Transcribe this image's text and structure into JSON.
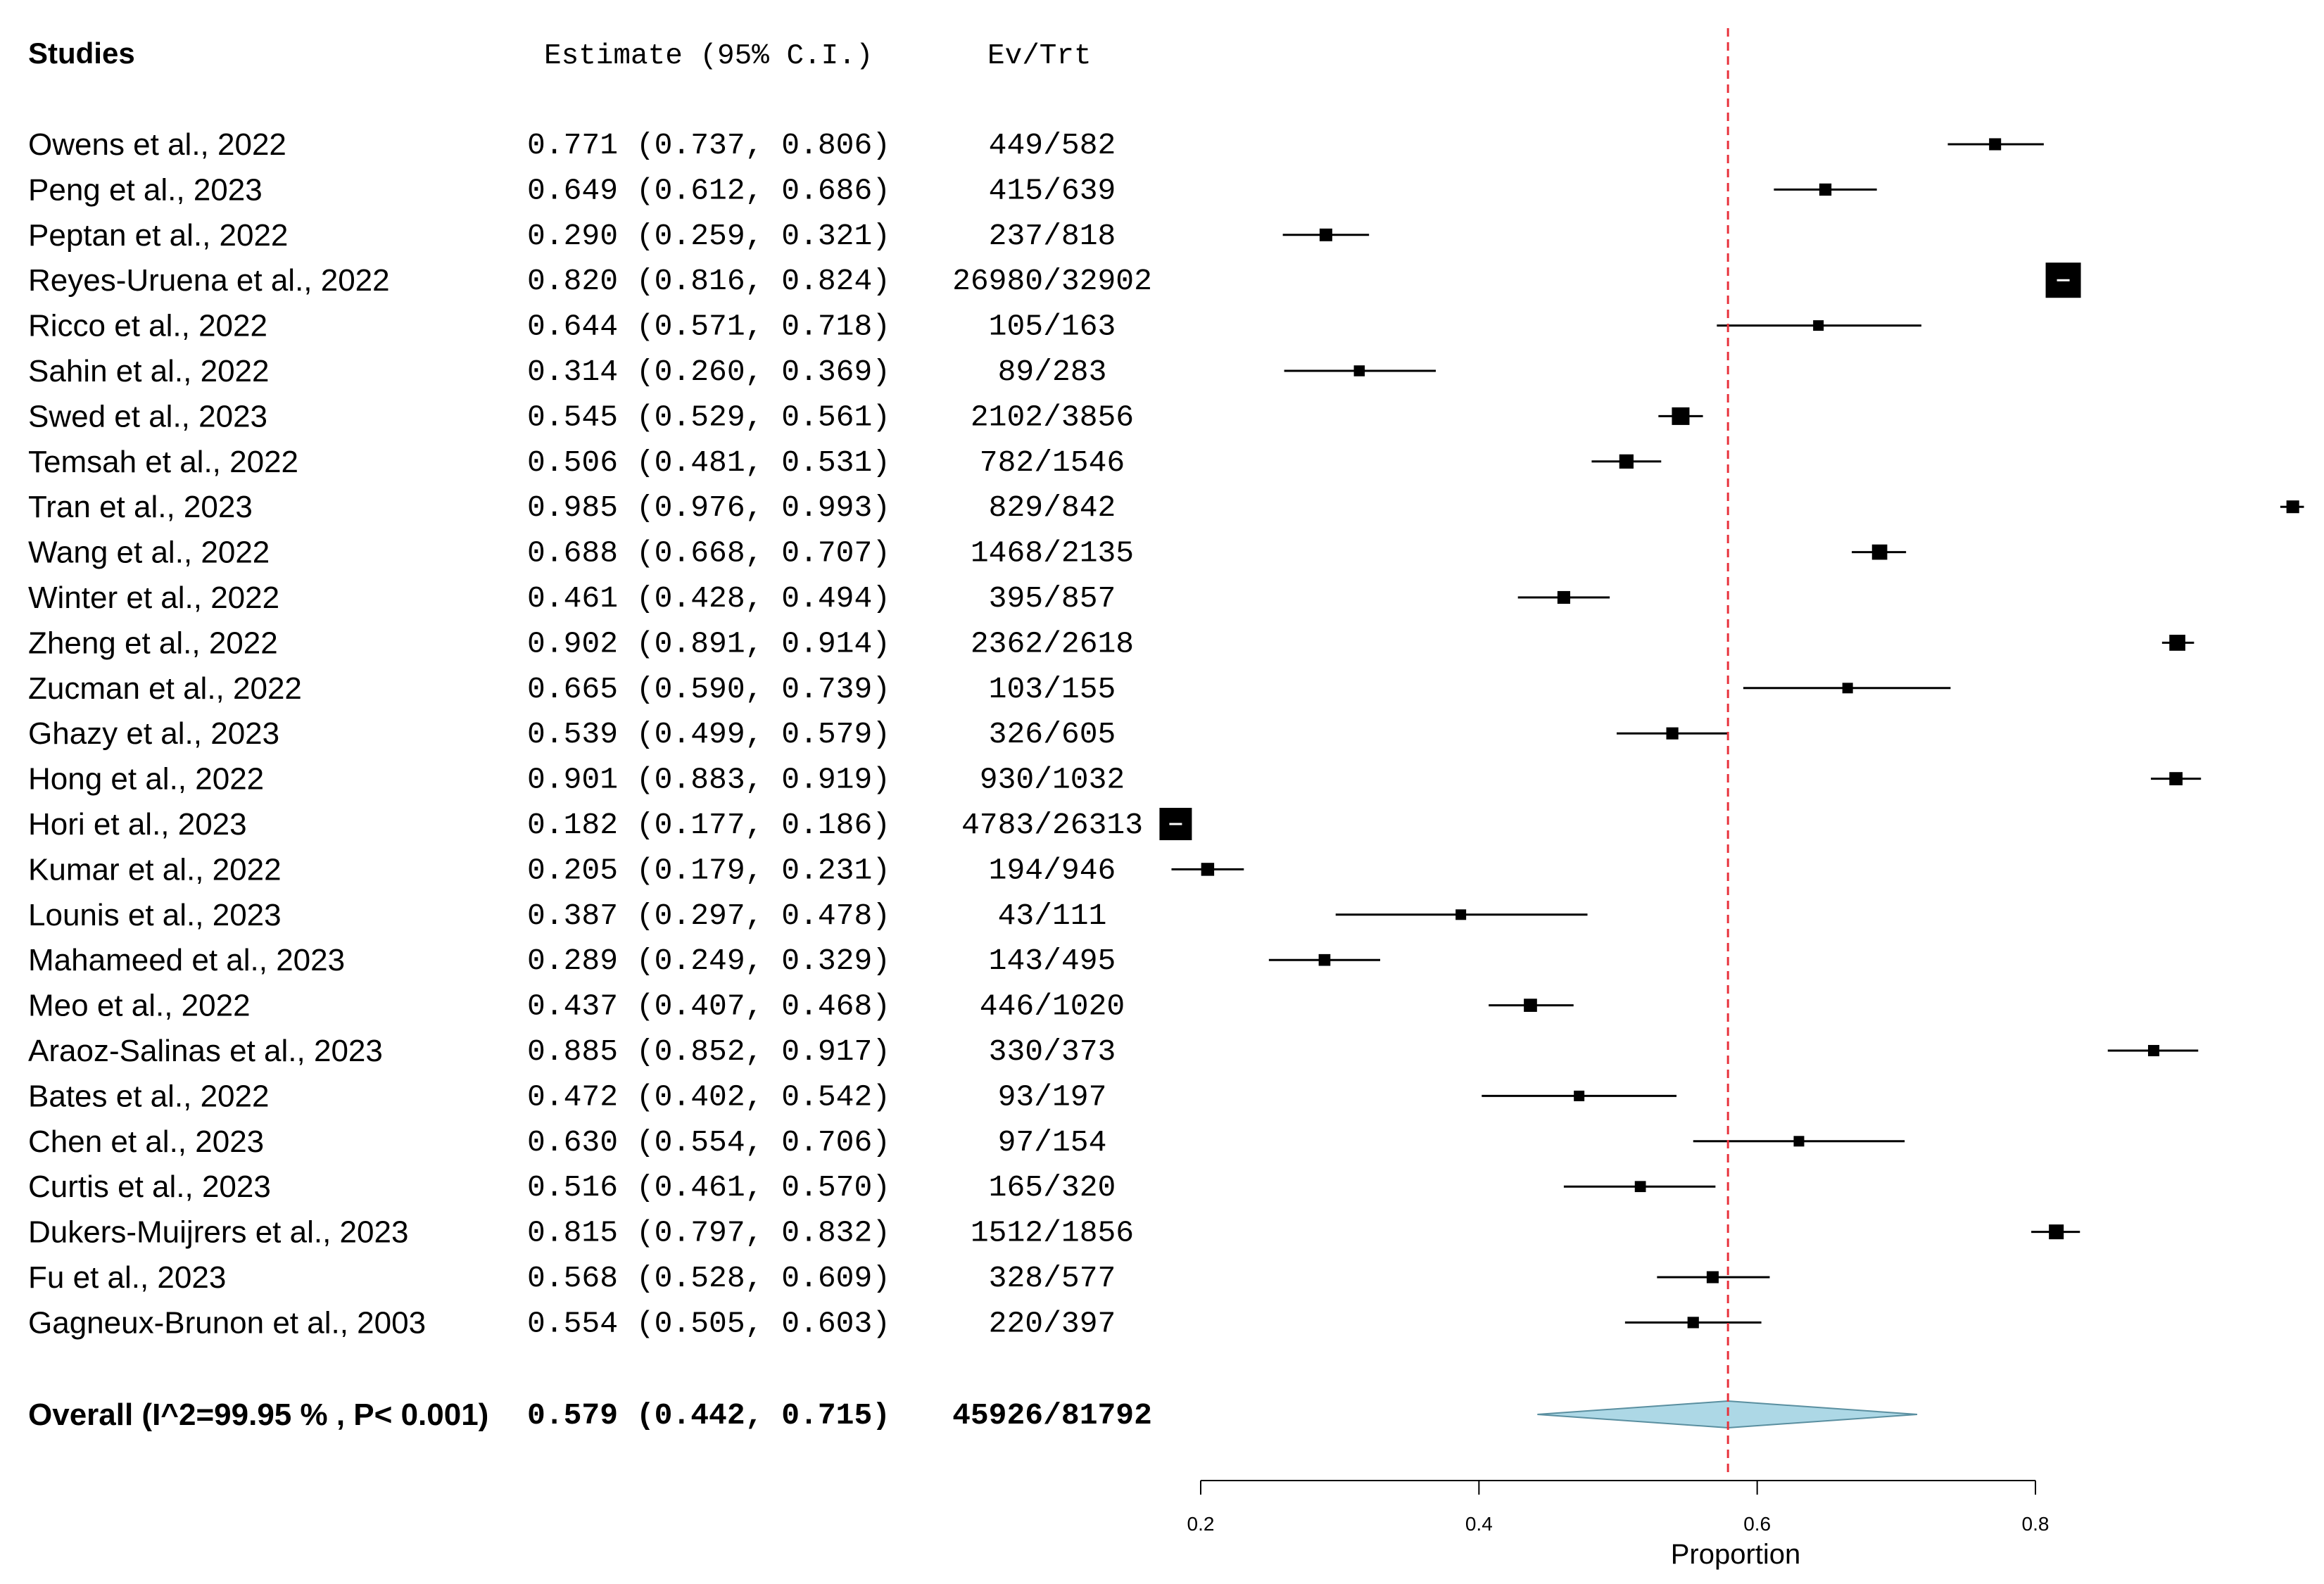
{
  "chart_data": {
    "type": "forest",
    "title": "",
    "headers": {
      "studies": "Studies",
      "estimate": "Estimate (95% C.I.)",
      "events": "Ev/Trt"
    },
    "xlabel": "Proportion",
    "xlim": [
      0.2,
      0.8
    ],
    "ticks": [
      0.2,
      0.4,
      0.6,
      0.8
    ],
    "tick_labels": [
      "0.2",
      "0.4",
      "0.6",
      "0.8"
    ],
    "reference_line": 0.579,
    "reference_color": "#e8323c",
    "diamond_color": "#add8e6",
    "studies": [
      {
        "label": "Owens et al., 2022",
        "est": 0.771,
        "lo": 0.737,
        "hi": 0.806,
        "est_text": "0.771",
        "lo_text": "0.737",
        "hi_text": "0.806",
        "ev": "449",
        "trt": "582"
      },
      {
        "label": "Peng et al., 2023",
        "est": 0.649,
        "lo": 0.612,
        "hi": 0.686,
        "est_text": "0.649",
        "lo_text": "0.612",
        "hi_text": "0.686",
        "ev": "415",
        "trt": "639"
      },
      {
        "label": "Peptan et al., 2022",
        "est": 0.29,
        "lo": 0.259,
        "hi": 0.321,
        "est_text": "0.290",
        "lo_text": "0.259",
        "hi_text": "0.321",
        "ev": "237",
        "trt": "818"
      },
      {
        "label": "Reyes-Uruena et al., 2022",
        "est": 0.82,
        "lo": 0.816,
        "hi": 0.824,
        "est_text": "0.820",
        "lo_text": "0.816",
        "hi_text": "0.824",
        "ev": "26980",
        "trt": "32902"
      },
      {
        "label": "Ricco et al., 2022",
        "est": 0.644,
        "lo": 0.571,
        "hi": 0.718,
        "est_text": "0.644",
        "lo_text": "0.571",
        "hi_text": "0.718",
        "ev": "105",
        "trt": "163"
      },
      {
        "label": "Sahin et al., 2022",
        "est": 0.314,
        "lo": 0.26,
        "hi": 0.369,
        "est_text": "0.314",
        "lo_text": "0.260",
        "hi_text": "0.369",
        "ev": "89",
        "trt": "283"
      },
      {
        "label": "Swed et al., 2023",
        "est": 0.545,
        "lo": 0.529,
        "hi": 0.561,
        "est_text": "0.545",
        "lo_text": "0.529",
        "hi_text": "0.561",
        "ev": "2102",
        "trt": "3856"
      },
      {
        "label": "Temsah et al., 2022",
        "est": 0.506,
        "lo": 0.481,
        "hi": 0.531,
        "est_text": "0.506",
        "lo_text": "0.481",
        "hi_text": "0.531",
        "ev": "782",
        "trt": "1546"
      },
      {
        "label": "Tran et al., 2023",
        "est": 0.985,
        "lo": 0.976,
        "hi": 0.993,
        "est_text": "0.985",
        "lo_text": "0.976",
        "hi_text": "0.993",
        "ev": "829",
        "trt": "842"
      },
      {
        "label": "Wang et al., 2022",
        "est": 0.688,
        "lo": 0.668,
        "hi": 0.707,
        "est_text": "0.688",
        "lo_text": "0.668",
        "hi_text": "0.707",
        "ev": "1468",
        "trt": "2135"
      },
      {
        "label": "Winter et al., 2022",
        "est": 0.461,
        "lo": 0.428,
        "hi": 0.494,
        "est_text": "0.461",
        "lo_text": "0.428",
        "hi_text": "0.494",
        "ev": "395",
        "trt": "857"
      },
      {
        "label": "Zheng et al., 2022",
        "est": 0.902,
        "lo": 0.891,
        "hi": 0.914,
        "est_text": "0.902",
        "lo_text": "0.891",
        "hi_text": "0.914",
        "ev": "2362",
        "trt": "2618"
      },
      {
        "label": "Zucman et al., 2022",
        "est": 0.665,
        "lo": 0.59,
        "hi": 0.739,
        "est_text": "0.665",
        "lo_text": "0.590",
        "hi_text": "0.739",
        "ev": "103",
        "trt": "155"
      },
      {
        "label": "Ghazy et al., 2023",
        "est": 0.539,
        "lo": 0.499,
        "hi": 0.579,
        "est_text": "0.539",
        "lo_text": "0.499",
        "hi_text": "0.579",
        "ev": "326",
        "trt": "605"
      },
      {
        "label": "Hong et al., 2022",
        "est": 0.901,
        "lo": 0.883,
        "hi": 0.919,
        "est_text": "0.901",
        "lo_text": "0.883",
        "hi_text": "0.919",
        "ev": "930",
        "trt": "1032"
      },
      {
        "label": "Hori et al., 2023",
        "est": 0.182,
        "lo": 0.177,
        "hi": 0.186,
        "est_text": "0.182",
        "lo_text": "0.177",
        "hi_text": "0.186",
        "ev": "4783",
        "trt": "26313"
      },
      {
        "label": "Kumar et al., 2022",
        "est": 0.205,
        "lo": 0.179,
        "hi": 0.231,
        "est_text": "0.205",
        "lo_text": "0.179",
        "hi_text": "0.231",
        "ev": "194",
        "trt": "946"
      },
      {
        "label": "Lounis et al., 2023",
        "est": 0.387,
        "lo": 0.297,
        "hi": 0.478,
        "est_text": "0.387",
        "lo_text": "0.297",
        "hi_text": "0.478",
        "ev": "43",
        "trt": "111"
      },
      {
        "label": "Mahameed et al., 2023",
        "est": 0.289,
        "lo": 0.249,
        "hi": 0.329,
        "est_text": "0.289",
        "lo_text": "0.249",
        "hi_text": "0.329",
        "ev": "143",
        "trt": "495"
      },
      {
        "label": "Meo et al., 2022",
        "est": 0.437,
        "lo": 0.407,
        "hi": 0.468,
        "est_text": "0.437",
        "lo_text": "0.407",
        "hi_text": "0.468",
        "ev": "446",
        "trt": "1020"
      },
      {
        "label": "Araoz-Salinas et al., 2023",
        "est": 0.885,
        "lo": 0.852,
        "hi": 0.917,
        "est_text": "0.885",
        "lo_text": "0.852",
        "hi_text": "0.917",
        "ev": "330",
        "trt": "373"
      },
      {
        "label": "Bates et al., 2022",
        "est": 0.472,
        "lo": 0.402,
        "hi": 0.542,
        "est_text": "0.472",
        "lo_text": "0.402",
        "hi_text": "0.542",
        "ev": "93",
        "trt": "197"
      },
      {
        "label": "Chen et al., 2023",
        "est": 0.63,
        "lo": 0.554,
        "hi": 0.706,
        "est_text": "0.630",
        "lo_text": "0.554",
        "hi_text": "0.706",
        "ev": "97",
        "trt": "154"
      },
      {
        "label": "Curtis et al., 2023",
        "est": 0.516,
        "lo": 0.461,
        "hi": 0.57,
        "est_text": "0.516",
        "lo_text": "0.461",
        "hi_text": "0.570",
        "ev": "165",
        "trt": "320"
      },
      {
        "label": "Dukers-Muijrers et al., 2023",
        "est": 0.815,
        "lo": 0.797,
        "hi": 0.832,
        "est_text": "0.815",
        "lo_text": "0.797",
        "hi_text": "0.832",
        "ev": "1512",
        "trt": "1856"
      },
      {
        "label": "Fu et al., 2023",
        "est": 0.568,
        "lo": 0.528,
        "hi": 0.609,
        "est_text": "0.568",
        "lo_text": "0.528",
        "hi_text": "0.609",
        "ev": "328",
        "trt": "577"
      },
      {
        "label": "Gagneux-Brunon et al., 2003",
        "est": 0.554,
        "lo": 0.505,
        "hi": 0.603,
        "est_text": "0.554",
        "lo_text": "0.505",
        "hi_text": "0.603",
        "ev": "220",
        "trt": "397"
      }
    ],
    "overall": {
      "label": "Overall (I^2=99.95 % , P< 0.001)",
      "est": 0.579,
      "lo": 0.442,
      "hi": 0.715,
      "est_text": "0.579",
      "lo_text": "0.442",
      "hi_text": "0.715",
      "ev": "45926",
      "trt": "81792"
    }
  }
}
